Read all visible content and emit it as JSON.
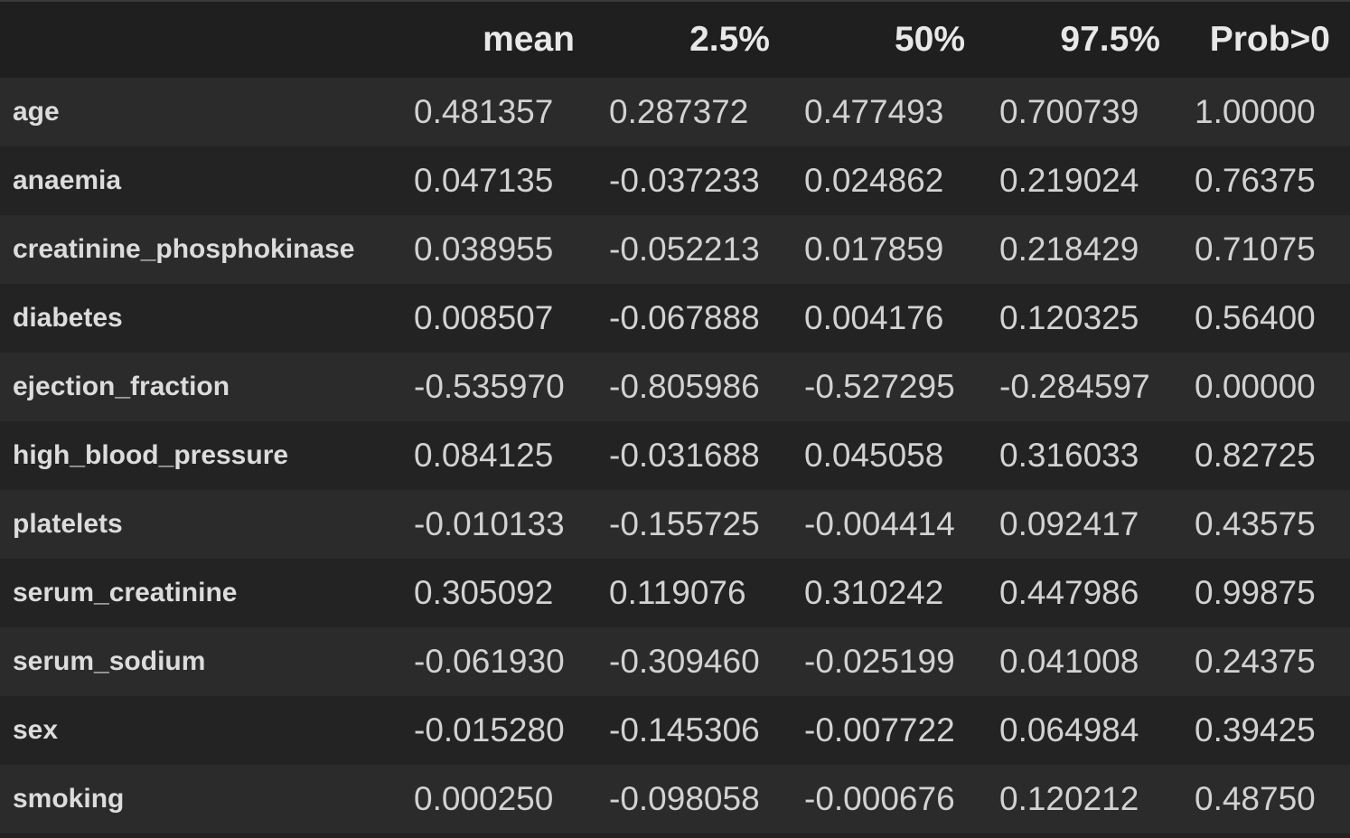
{
  "columns": [
    "mean",
    "2.5%",
    "50%",
    "97.5%",
    "Prob>0"
  ],
  "rows": [
    {
      "label": "age",
      "values": [
        "0.481357",
        "0.287372",
        "0.477493",
        "0.700739",
        "1.00000"
      ]
    },
    {
      "label": "anaemia",
      "values": [
        "0.047135",
        "-0.037233",
        "0.024862",
        "0.219024",
        "0.76375"
      ]
    },
    {
      "label": "creatinine_phosphokinase",
      "values": [
        "0.038955",
        "-0.052213",
        "0.017859",
        "0.218429",
        "0.71075"
      ]
    },
    {
      "label": "diabetes",
      "values": [
        "0.008507",
        "-0.067888",
        "0.004176",
        "0.120325",
        "0.56400"
      ]
    },
    {
      "label": "ejection_fraction",
      "values": [
        "-0.535970",
        "-0.805986",
        "-0.527295",
        "-0.284597",
        "0.00000"
      ]
    },
    {
      "label": "high_blood_pressure",
      "values": [
        "0.084125",
        "-0.031688",
        "0.045058",
        "0.316033",
        "0.82725"
      ]
    },
    {
      "label": "platelets",
      "values": [
        "-0.010133",
        "-0.155725",
        "-0.004414",
        "0.092417",
        "0.43575"
      ]
    },
    {
      "label": "serum_creatinine",
      "values": [
        "0.305092",
        "0.119076",
        "0.310242",
        "0.447986",
        "0.99875"
      ]
    },
    {
      "label": "serum_sodium",
      "values": [
        "-0.061930",
        "-0.309460",
        "-0.025199",
        "0.041008",
        "0.24375"
      ]
    },
    {
      "label": "sex",
      "values": [
        "-0.015280",
        "-0.145306",
        "-0.007722",
        "0.064984",
        "0.39425"
      ]
    },
    {
      "label": "smoking",
      "values": [
        "0.000250",
        "-0.098058",
        "-0.000676",
        "0.120212",
        "0.48750"
      ]
    }
  ]
}
